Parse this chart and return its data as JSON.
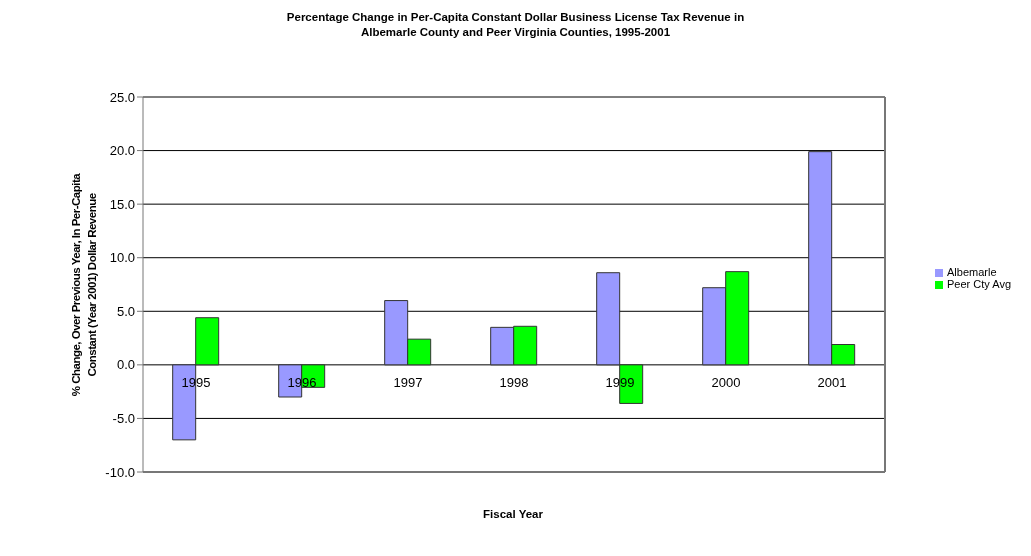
{
  "chart_data": {
    "type": "bar",
    "title": "Percentage Change in Per-Capita Constant Dollar Business License Tax Revenue in\nAlbemarle County and Peer Virginia Counties, 1995-2001",
    "xlabel": "Fiscal Year",
    "ylabel": "% Change, Over Previous Year, In Per-Capita\nConstant (Year 2001) Dollar Revenue",
    "categories": [
      "1995",
      "1996",
      "1997",
      "1998",
      "1999",
      "2000",
      "2001"
    ],
    "series": [
      {
        "name": "Albemarle",
        "color": "#9999ff",
        "values": [
          -7.0,
          -3.0,
          6.0,
          3.5,
          8.6,
          7.2,
          19.9
        ]
      },
      {
        "name": "Peer Cty Avg",
        "color": "#00ff00",
        "values": [
          4.4,
          -2.1,
          2.4,
          3.6,
          -3.6,
          8.7,
          1.9
        ]
      }
    ],
    "ylim": [
      -10,
      25
    ],
    "yticks": [
      {
        "value": -10,
        "label": "-10.0"
      },
      {
        "value": -5,
        "label": "-5.0"
      },
      {
        "value": 0,
        "label": "0.0"
      },
      {
        "value": 5,
        "label": "5.0"
      },
      {
        "value": 10,
        "label": "10.0"
      },
      {
        "value": 15,
        "label": "15.0"
      },
      {
        "value": 20,
        "label": "20.0"
      },
      {
        "value": 25,
        "label": "25.0"
      }
    ],
    "grid": "y",
    "legend": "right"
  }
}
